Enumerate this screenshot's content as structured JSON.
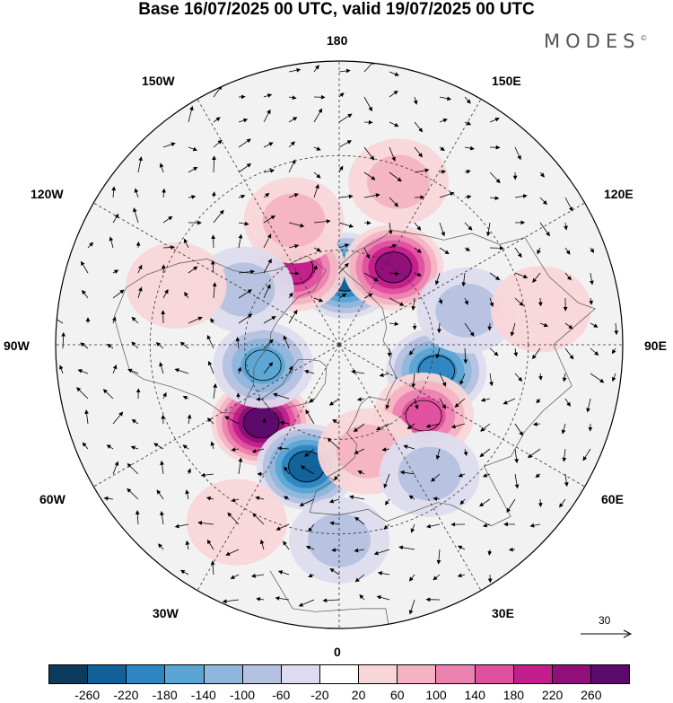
{
  "title": "Base 16/07/2025 00 UTC, valid 19/07/2025 00 UTC",
  "logo": "MODES",
  "logo_mark": "©",
  "longitudes": {
    "top": "180",
    "bottom": "0",
    "left": "90W",
    "right": "90E",
    "upper_left_1": "150W",
    "upper_left_2": "120W",
    "upper_right_1": "150E",
    "upper_right_2": "120E",
    "lower_left_1": "60W",
    "lower_left_2": "30W",
    "lower_right_1": "60E",
    "lower_right_2": "30E"
  },
  "reference_vector": "30",
  "colorbar": {
    "ticks": [
      "-260",
      "-220",
      "-180",
      "-140",
      "-100",
      "-60",
      "-20",
      "20",
      "60",
      "100",
      "140",
      "180",
      "220",
      "260"
    ],
    "colors": [
      "#0c3b5e",
      "#11609a",
      "#2d85c2",
      "#5aa5d3",
      "#8fb6dc",
      "#b4c1df",
      "#dddcee",
      "#ffffff",
      "#f8d6d8",
      "#f4b3c2",
      "#ec82b0",
      "#e0509f",
      "#c21f8c",
      "#900f7a",
      "#5b0a6c"
    ]
  },
  "features": {
    "anomalies": [
      {
        "lon": 175,
        "lat": 68,
        "value": -230
      },
      {
        "lon": 145,
        "lat": 60,
        "value": 230
      },
      {
        "lon": -150,
        "lat": 62,
        "value": 200
      },
      {
        "lon": -160,
        "lat": 48,
        "value": 90
      },
      {
        "lon": -45,
        "lat": 55,
        "value": 270
      },
      {
        "lon": -15,
        "lat": 50,
        "value": -230
      },
      {
        "lon": -75,
        "lat": 65,
        "value": -160
      },
      {
        "lon": 75,
        "lat": 58,
        "value": -190
      },
      {
        "lon": 50,
        "lat": 55,
        "value": 170
      },
      {
        "lon": 15,
        "lat": 55,
        "value": 80
      },
      {
        "lon": 35,
        "lat": 40,
        "value": -90
      },
      {
        "lon": 105,
        "lat": 48,
        "value": -70
      },
      {
        "lon": -120,
        "lat": 55,
        "value": -60
      },
      {
        "lon": -110,
        "lat": 35,
        "value": 50
      },
      {
        "lon": 100,
        "lat": 25,
        "value": 50
      },
      {
        "lon": -30,
        "lat": 25,
        "value": 50
      },
      {
        "lon": 0,
        "lat": 28,
        "value": -60
      },
      {
        "lon": 160,
        "lat": 35,
        "value": 60
      }
    ]
  }
}
